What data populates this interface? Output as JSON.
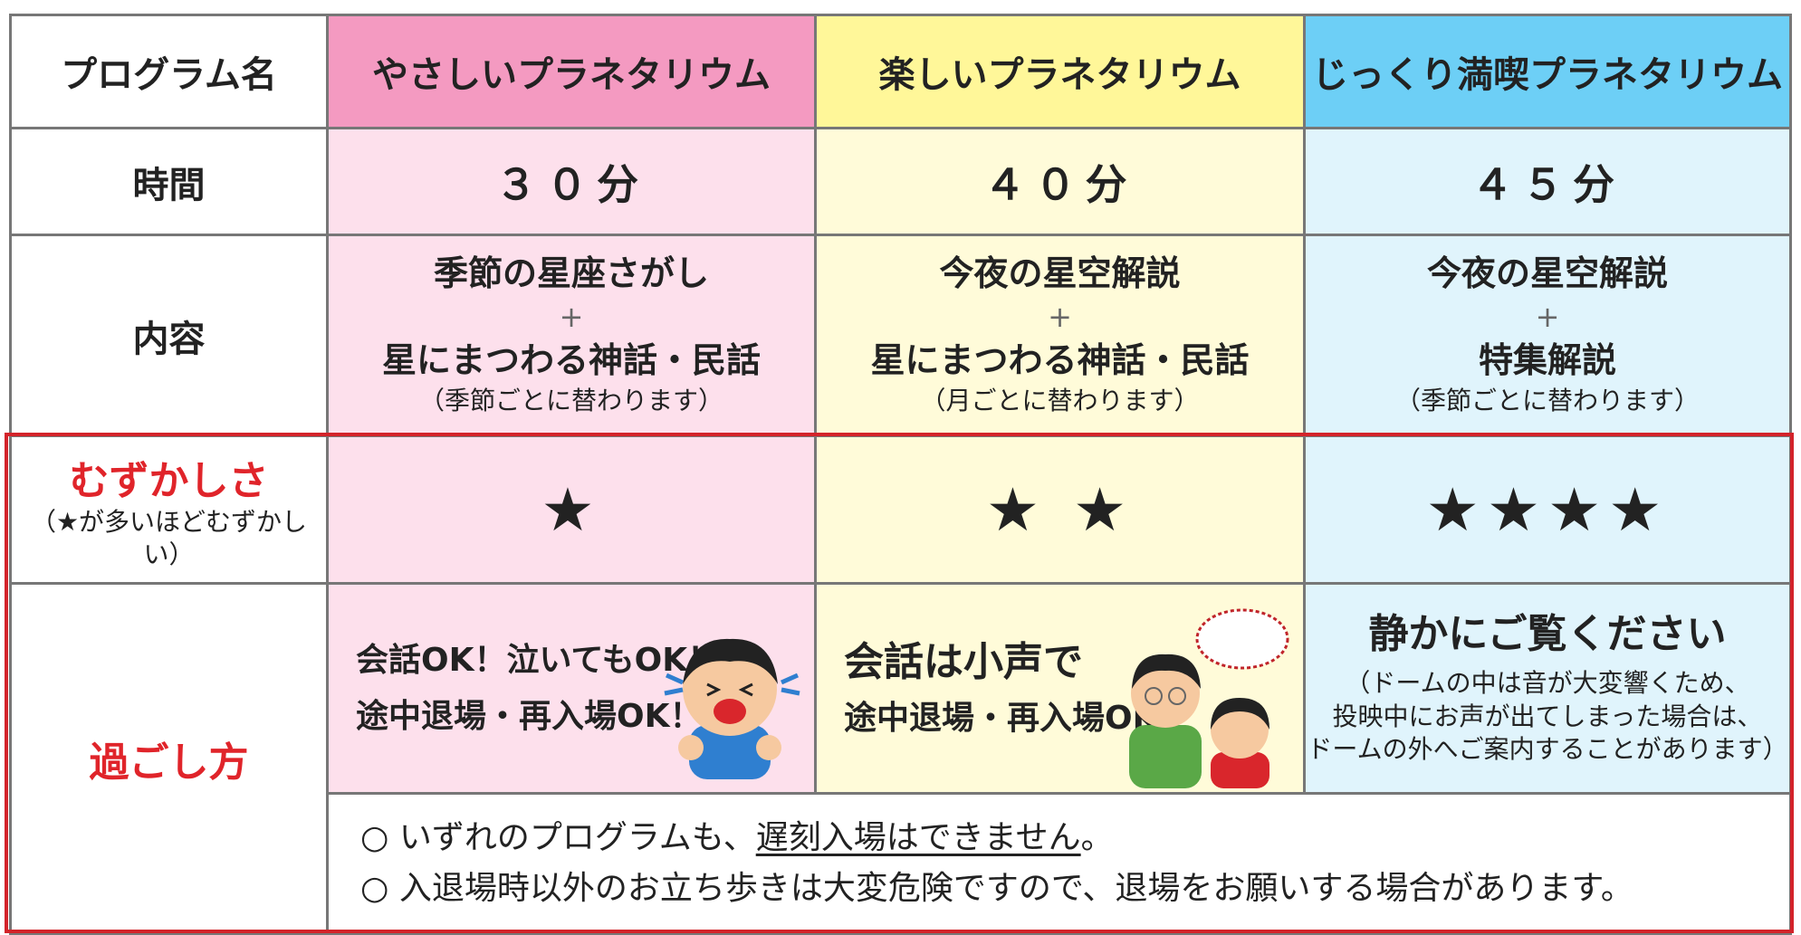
{
  "table": {
    "header": [
      "プログラム名",
      "やさしいプラネタリウム",
      "楽しいプラネタリウム",
      "じっくり満喫プラネタリウム"
    ],
    "time": {
      "label": "時間",
      "cells": [
        "３０分",
        "４０分",
        "４５分"
      ]
    },
    "content": {
      "label": "内容",
      "cells": [
        [
          "季節の星座さがし",
          "+",
          "星にまつわる神話・民話",
          "（季節ごとに替わります）"
        ],
        [
          "今夜の星空解説",
          "+",
          "星にまつわる神話・民話",
          "（月ごとに替わります）"
        ],
        [
          "今夜の星空解説",
          "+",
          "特集解説",
          "（季節ごとに替わります）"
        ]
      ]
    },
    "difficulty": {
      "label": "むずかしさ",
      "note": "（★が多いほどむずかしい）",
      "cells": [
        "★",
        "★ ★",
        "★★★★"
      ]
    },
    "manner": {
      "label": "過ごし方",
      "cells": [
        [
          "会話OK！泣いてもOK！",
          "途中退場・再入場OK！"
        ],
        [
          "会話は小声で",
          "途中退場・再入場OK！"
        ],
        [
          "静かにご覧ください",
          "（ドームの中は音が大変響くため、",
          "投映中にお声が出てしまった場合は、",
          "ドームの外へご案内することがあります）"
        ]
      ],
      "notes": [
        [
          "○ いずれのプログラムも、",
          "遅刻入場はできません",
          "。"
        ],
        [
          "○ 入退場時以外のお立ち歩きは大変危険ですので、退場をお願いする場合があります。"
        ]
      ]
    }
  }
}
